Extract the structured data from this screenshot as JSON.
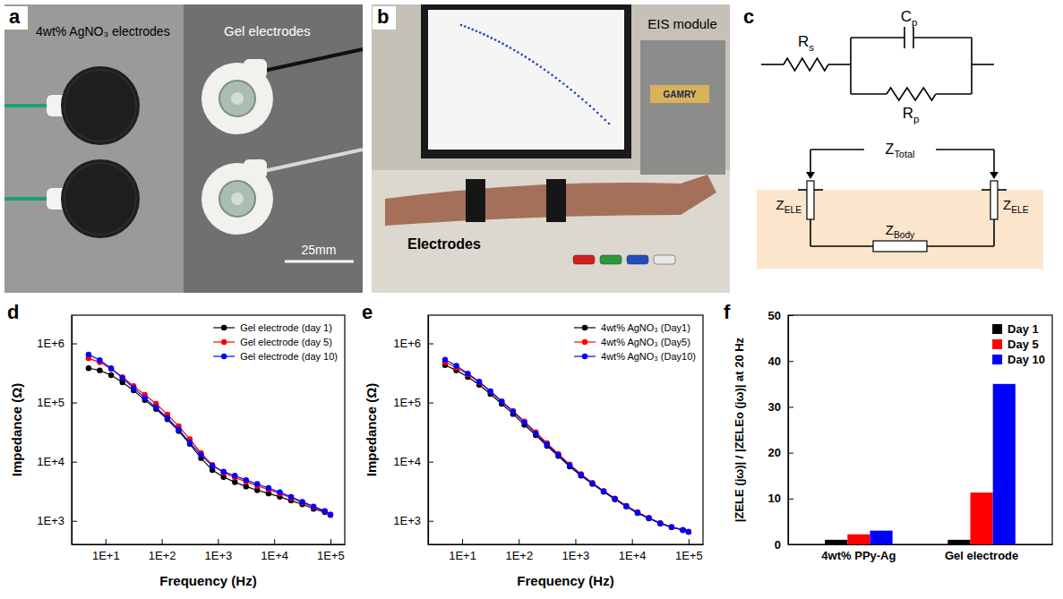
{
  "panel_labels": [
    "a",
    "b",
    "c",
    "d",
    "e",
    "f"
  ],
  "photo_a": {
    "texts": [
      "4wt% AgNO₃ electrodes",
      "Gel electrodes",
      "25mm"
    ]
  },
  "photo_b": {
    "texts": [
      "EIS module",
      "GAMRY",
      "Electrodes"
    ]
  },
  "circuit": {
    "components": [
      {
        "label": "R",
        "sub": "s"
      },
      {
        "label": "C",
        "sub": "p"
      },
      {
        "label": "R",
        "sub": "p"
      }
    ],
    "impedances": [
      {
        "label": "Z",
        "sub": "Total"
      },
      {
        "label": "Z",
        "sub": "ELE"
      },
      {
        "label": "Z",
        "sub": "ELE"
      },
      {
        "label": "Z",
        "sub": "Body"
      }
    ]
  },
  "chart_data": [
    {
      "type": "line",
      "log": true,
      "grid": false,
      "legend": "upper right",
      "x_label": "Frequency (Hz)",
      "y_label": "Impedance (Ω)",
      "xlim": [
        2.5,
        180000
      ],
      "ylim": [
        400,
        3000000
      ],
      "xticks": [
        {
          "value": 10,
          "label": "1E+1"
        },
        {
          "value": 100,
          "label": "1E+2"
        },
        {
          "value": 1000,
          "label": "1E+3"
        },
        {
          "value": 10000,
          "label": "1E+4"
        },
        {
          "value": 100000,
          "label": "1E+5"
        }
      ],
      "yticks": [
        {
          "value": 1000,
          "label": "1E+3"
        },
        {
          "value": 10000,
          "label": "1E+4"
        },
        {
          "value": 100000,
          "label": "1E+5"
        },
        {
          "value": 1000000,
          "label": "1E+6"
        }
      ],
      "x": [
        5,
        7.9,
        12.6,
        20,
        31.6,
        50,
        79.4,
        126,
        200,
        316,
        500,
        794,
        1259,
        2000,
        3162,
        5000,
        7943,
        12589,
        19953,
        31623,
        50119,
        79433,
        100000
      ],
      "series": [
        {
          "name": "Gel electrode (day 1)",
          "color": "#000000",
          "marker": "circle",
          "line_style": "solid",
          "values": [
            380000,
            350000,
            290000,
            220000,
            160000,
            110000,
            78000,
            52000,
            33000,
            20000,
            11500,
            7200,
            5500,
            4500,
            3800,
            3300,
            2900,
            2550,
            2200,
            1900,
            1600,
            1400,
            1250
          ]
        },
        {
          "name": "Gel electrode (day 5)",
          "color": "#ff0000",
          "marker": "circle",
          "line_style": "solid",
          "values": [
            560000,
            480000,
            370000,
            270000,
            190000,
            135000,
            95000,
            63000,
            40000,
            24000,
            14000,
            8800,
            6500,
            5400,
            4600,
            3900,
            3400,
            2900,
            2450,
            2050,
            1700,
            1450,
            1280
          ]
        },
        {
          "name": "Gel electrode (day 10)",
          "color": "#0000ff",
          "marker": "circle",
          "line_style": "solid",
          "values": [
            650000,
            520000,
            380000,
            260000,
            175000,
            120000,
            82000,
            55000,
            35000,
            21000,
            13000,
            8500,
            6800,
            5800,
            4900,
            4200,
            3600,
            3050,
            2550,
            2100,
            1750,
            1470,
            1280
          ]
        }
      ]
    },
    {
      "type": "line",
      "log": true,
      "grid": false,
      "legend": "upper right",
      "x_label": "Frequency (Hz)",
      "y_label": "Impedance (Ω)",
      "xlim": [
        2.5,
        180000
      ],
      "ylim": [
        400,
        3000000
      ],
      "xticks": [
        {
          "value": 10,
          "label": "1E+1"
        },
        {
          "value": 100,
          "label": "1E+2"
        },
        {
          "value": 1000,
          "label": "1E+3"
        },
        {
          "value": 10000,
          "label": "1E+4"
        },
        {
          "value": 100000,
          "label": "1E+5"
        }
      ],
      "yticks": [
        {
          "value": 1000,
          "label": "1E+3"
        },
        {
          "value": 10000,
          "label": "1E+4"
        },
        {
          "value": 100000,
          "label": "1E+5"
        },
        {
          "value": 1000000,
          "label": "1E+6"
        }
      ],
      "x": [
        5,
        7.9,
        12.6,
        20,
        31.6,
        50,
        79.4,
        126,
        200,
        316,
        500,
        794,
        1259,
        2000,
        3162,
        5000,
        7943,
        12589,
        19953,
        31623,
        50119,
        79433,
        100000
      ],
      "series": [
        {
          "name": "4wt% AgNO₃ (Day1)",
          "color": "#000000",
          "marker": "circle",
          "line_style": "solid",
          "values": [
            430000,
            350000,
            270000,
            200000,
            140000,
            95000,
            64000,
            42000,
            28000,
            18500,
            12500,
            8300,
            5800,
            4200,
            3100,
            2300,
            1750,
            1350,
            1100,
            900,
            780,
            700,
            650
          ]
        },
        {
          "name": "4wt% AgNO₃ (Day5)",
          "color": "#ff0000",
          "marker": "circle",
          "line_style": "solid",
          "values": [
            480000,
            390000,
            300000,
            220000,
            155000,
            105000,
            72000,
            48000,
            31500,
            20500,
            13500,
            9000,
            6200,
            4400,
            3200,
            2400,
            1800,
            1400,
            1130,
            920,
            790,
            700,
            650
          ]
        },
        {
          "name": "4wt% AgNO₃ (Day10)",
          "color": "#0000ff",
          "marker": "circle",
          "line_style": "solid",
          "values": [
            530000,
            420000,
            310000,
            225000,
            155000,
            104000,
            70000,
            46000,
            30000,
            19500,
            13000,
            8700,
            6000,
            4300,
            3150,
            2350,
            1780,
            1380,
            1110,
            910,
            785,
            700,
            650
          ]
        }
      ]
    },
    {
      "type": "bar",
      "grid": false,
      "legend": "upper right",
      "y_label": "|ZELE (jω)| / |ZELEo (jω)| at 20 Hz",
      "categories": [
        "4wt% PPy-Ag",
        "Gel electrode"
      ],
      "ylim": [
        0,
        50
      ],
      "yticks": [
        0,
        10,
        20,
        30,
        40,
        50
      ],
      "series": [
        {
          "name": "Day 1",
          "color": "#000000",
          "values": [
            1,
            1
          ]
        },
        {
          "name": "Day 5",
          "color": "#ff0000",
          "values": [
            2.2,
            11.3
          ]
        },
        {
          "name": "Day 10",
          "color": "#0000ff",
          "values": [
            3.0,
            35
          ]
        }
      ]
    }
  ]
}
